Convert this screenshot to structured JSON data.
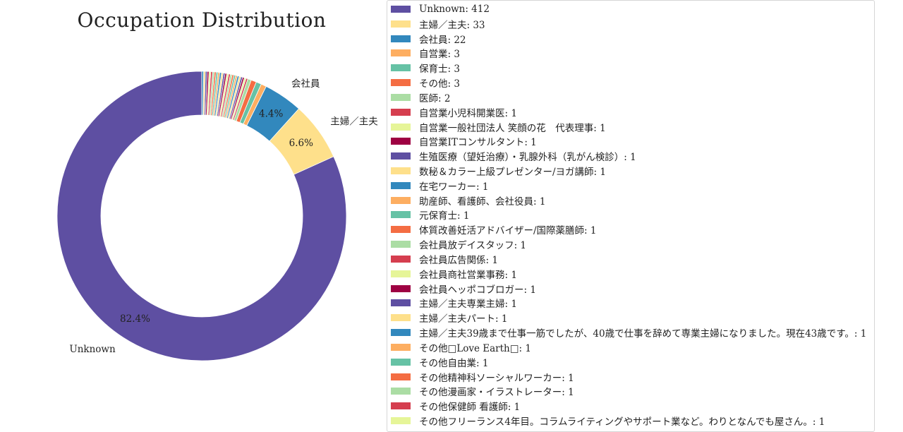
{
  "chart_data": {
    "type": "pie",
    "title": "Occupation Distribution",
    "donut": true,
    "slices": [
      {
        "label": "Unknown",
        "value": 412,
        "color": "#5e4fa2"
      },
      {
        "label": "主婦／主夫",
        "value": 33,
        "color": "#fee08b"
      },
      {
        "label": "会社員",
        "value": 22,
        "color": "#3288bd"
      },
      {
        "label": "自営業",
        "value": 3,
        "color": "#fdae61"
      },
      {
        "label": "保育士",
        "value": 3,
        "color": "#66c2a5"
      },
      {
        "label": "その他",
        "value": 3,
        "color": "#f46d43"
      },
      {
        "label": "医師",
        "value": 2,
        "color": "#abdda4"
      },
      {
        "label": "自営業小児科開業医",
        "value": 1,
        "color": "#d53e4f"
      },
      {
        "label": "自営業一般社団法人 笑顔の花　代表理事",
        "value": 1,
        "color": "#e6f598"
      },
      {
        "label": "自営業ITコンサルタント",
        "value": 1,
        "color": "#9e0142"
      },
      {
        "label": "生殖医療（望妊治療）・乳腺外科（乳がん検診）",
        "value": 1,
        "color": "#5e4fa2"
      },
      {
        "label": "数秘＆カラー上級プレゼンター/ヨガ講師",
        "value": 1,
        "color": "#fee08b"
      },
      {
        "label": "在宅ワーカー",
        "value": 1,
        "color": "#3288bd"
      },
      {
        "label": "助産師、看護師、会社役員",
        "value": 1,
        "color": "#fdae61"
      },
      {
        "label": "元保育士",
        "value": 1,
        "color": "#66c2a5"
      },
      {
        "label": "体質改善妊活アドバイザー/国際薬膳師",
        "value": 1,
        "color": "#f46d43"
      },
      {
        "label": "会社員放デイスタッフ",
        "value": 1,
        "color": "#abdda4"
      },
      {
        "label": "会社員広告関係",
        "value": 1,
        "color": "#d53e4f"
      },
      {
        "label": "会社員商社営業事務",
        "value": 1,
        "color": "#e6f598"
      },
      {
        "label": "会社員ヘッポコブロガー",
        "value": 1,
        "color": "#9e0142"
      },
      {
        "label": "主婦／主夫専業主婦",
        "value": 1,
        "color": "#5e4fa2"
      },
      {
        "label": "主婦／主夫パート",
        "value": 1,
        "color": "#fee08b"
      },
      {
        "label": "主婦／主夫39歳まで仕事一筋でしたが、40歳で仕事を辞めて専業主婦になりました。現在43歳です。",
        "value": 1,
        "color": "#3288bd"
      },
      {
        "label": "その他□Love Earth□",
        "value": 1,
        "color": "#fdae61"
      },
      {
        "label": "その他自由業",
        "value": 1,
        "color": "#66c2a5"
      },
      {
        "label": "その他精神科ソーシャルワーカー",
        "value": 1,
        "color": "#f46d43"
      },
      {
        "label": "その他漫画家・イラストレーター",
        "value": 1,
        "color": "#abdda4"
      },
      {
        "label": "その他保健師 看護師",
        "value": 1,
        "color": "#d53e4f"
      },
      {
        "label": "その他フリーランス4年目。コラムライティングやサポート業など。わりとなんでも屋さん。",
        "value": 1,
        "color": "#e6f598"
      },
      {
        "label": "",
        "value": 1,
        "color": "#9e0142"
      },
      {
        "label": "",
        "value": 1,
        "color": "#5e4fa2"
      },
      {
        "label": "",
        "value": 1,
        "color": "#fee08b"
      },
      {
        "label": "",
        "value": 1,
        "color": "#3288bd"
      }
    ],
    "outer_labels": [
      {
        "slice": 0,
        "text": "Unknown"
      },
      {
        "slice": 1,
        "text": "主婦／主夫"
      },
      {
        "slice": 2,
        "text": "会社員"
      }
    ],
    "pct_labels": [
      {
        "slice": 0,
        "text": "82.4%"
      },
      {
        "slice": 1,
        "text": "6.6%"
      },
      {
        "slice": 2,
        "text": "4.4%"
      }
    ],
    "legend": {
      "placement": "right",
      "entries": [
        {
          "text": "Unknown: 412",
          "color": "#5e4fa2"
        },
        {
          "text": "主婦／主夫: 33",
          "color": "#fee08b"
        },
        {
          "text": "会社員: 22",
          "color": "#3288bd"
        },
        {
          "text": "自営業: 3",
          "color": "#fdae61"
        },
        {
          "text": "保育士: 3",
          "color": "#66c2a5"
        },
        {
          "text": "その他: 3",
          "color": "#f46d43"
        },
        {
          "text": "医師: 2",
          "color": "#abdda4"
        },
        {
          "text": "自営業小児科開業医: 1",
          "color": "#d53e4f"
        },
        {
          "text": "自営業一般社団法人 笑顔の花　代表理事: 1",
          "color": "#e6f598"
        },
        {
          "text": "自営業ITコンサルタント: 1",
          "color": "#9e0142"
        },
        {
          "text": "生殖医療（望妊治療）・乳腺外科（乳がん検診）: 1",
          "color": "#5e4fa2"
        },
        {
          "text": "数秘＆カラー上級プレゼンター/ヨガ講師: 1",
          "color": "#fee08b"
        },
        {
          "text": "在宅ワーカー: 1",
          "color": "#3288bd"
        },
        {
          "text": "助産師、看護師、会社役員: 1",
          "color": "#fdae61"
        },
        {
          "text": "元保育士: 1",
          "color": "#66c2a5"
        },
        {
          "text": "体質改善妊活アドバイザー/国際薬膳師: 1",
          "color": "#f46d43"
        },
        {
          "text": "会社員放デイスタッフ: 1",
          "color": "#abdda4"
        },
        {
          "text": "会社員広告関係: 1",
          "color": "#d53e4f"
        },
        {
          "text": "会社員商社営業事務: 1",
          "color": "#e6f598"
        },
        {
          "text": "会社員ヘッポコブロガー: 1",
          "color": "#9e0142"
        },
        {
          "text": "主婦／主夫専業主婦: 1",
          "color": "#5e4fa2"
        },
        {
          "text": "主婦／主夫パート: 1",
          "color": "#fee08b"
        },
        {
          "text": "主婦／主夫39歳まで仕事一筋でしたが、40歳で仕事を辞めて専業主婦になりました。現在43歳です。: 1",
          "color": "#3288bd"
        },
        {
          "text": "その他□Love Earth□: 1",
          "color": "#fdae61"
        },
        {
          "text": "その他自由業: 1",
          "color": "#66c2a5"
        },
        {
          "text": "その他精神科ソーシャルワーカー: 1",
          "color": "#f46d43"
        },
        {
          "text": "その他漫画家・イラストレーター: 1",
          "color": "#abdda4"
        },
        {
          "text": "その他保健師 看護師: 1",
          "color": "#d53e4f"
        },
        {
          "text": "その他フリーランス4年目。コラムライティングやサポート業など。わりとなんでも屋さん。: 1",
          "color": "#e6f598"
        }
      ]
    }
  }
}
